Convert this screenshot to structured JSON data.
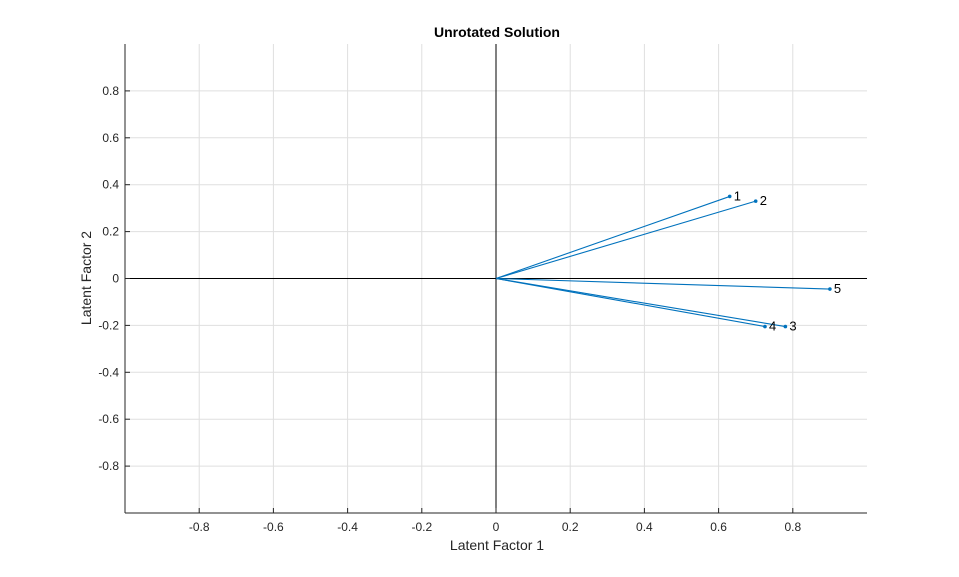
{
  "chart_data": {
    "type": "line",
    "title": "Unrotated Solution",
    "xlabel": "Latent Factor 1",
    "ylabel": "Latent Factor 2",
    "xlim": [
      -1,
      1
    ],
    "ylim": [
      -1,
      1
    ],
    "xticks": [
      -0.8,
      -0.6,
      -0.4,
      -0.2,
      0,
      0.2,
      0.4,
      0.6,
      0.8
    ],
    "yticks": [
      -0.8,
      -0.6,
      -0.4,
      -0.2,
      0,
      0.2,
      0.4,
      0.6,
      0.8
    ],
    "xtick_labels": [
      "-0.8",
      "-0.6",
      "-0.4",
      "-0.2",
      "0",
      "0.2",
      "0.4",
      "0.6",
      "0.8"
    ],
    "ytick_labels": [
      "-0.8",
      "-0.6",
      "-0.4",
      "-0.2",
      "0",
      "0.2",
      "0.4",
      "0.6",
      "0.8"
    ],
    "grid": true,
    "vectors": [
      {
        "label": "1",
        "x": 0.63,
        "y": 0.35
      },
      {
        "label": "2",
        "x": 0.7,
        "y": 0.33
      },
      {
        "label": "3",
        "x": 0.78,
        "y": -0.205
      },
      {
        "label": "4",
        "x": 0.725,
        "y": -0.205
      },
      {
        "label": "5",
        "x": 0.9,
        "y": -0.045
      }
    ],
    "colors": {
      "vector": "#0072BD",
      "axis": "#262626",
      "grid": "#dfdfdf",
      "zero_line": "#000000"
    }
  }
}
